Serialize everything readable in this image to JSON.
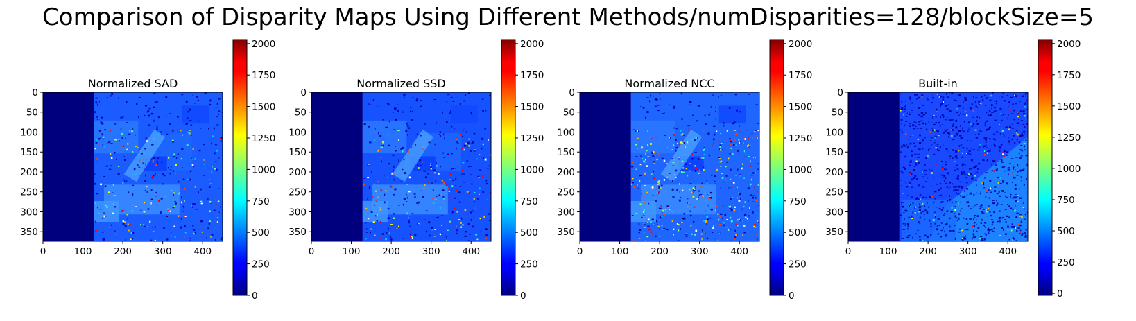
{
  "title": "Comparison of Disparity Maps Using Different Methods/numDisparities=128/blockSize=5",
  "colormap": "jet",
  "chart_data": [
    {
      "type": "heatmap",
      "title": "Normalized SAD",
      "xlim": [
        0,
        450
      ],
      "ylim": [
        374,
        0
      ],
      "x_ticks": [
        0,
        100,
        200,
        300,
        400
      ],
      "y_ticks": [
        0,
        50,
        100,
        150,
        200,
        250,
        300,
        350
      ],
      "invalid_region_x": [
        0,
        128
      ],
      "texture_variant": "sad",
      "colorbar": {
        "min": 0,
        "max": 2032,
        "ticks": [
          0,
          250,
          500,
          750,
          1000,
          1250,
          1500,
          1750,
          2000
        ]
      }
    },
    {
      "type": "heatmap",
      "title": "Normalized SSD",
      "xlim": [
        0,
        450
      ],
      "ylim": [
        374,
        0
      ],
      "x_ticks": [
        0,
        100,
        200,
        300,
        400
      ],
      "y_ticks": [
        0,
        50,
        100,
        150,
        200,
        250,
        300,
        350
      ],
      "invalid_region_x": [
        0,
        128
      ],
      "texture_variant": "ssd",
      "colorbar": {
        "min": 0,
        "max": 2032,
        "ticks": [
          0,
          250,
          500,
          750,
          1000,
          1250,
          1500,
          1750,
          2000
        ]
      }
    },
    {
      "type": "heatmap",
      "title": "Normalized NCC",
      "xlim": [
        0,
        450
      ],
      "ylim": [
        374,
        0
      ],
      "x_ticks": [
        0,
        100,
        200,
        300,
        400
      ],
      "y_ticks": [
        0,
        50,
        100,
        150,
        200,
        250,
        300,
        350
      ],
      "invalid_region_x": [
        0,
        128
      ],
      "texture_variant": "ncc",
      "colorbar": {
        "min": 0,
        "max": 2032,
        "ticks": [
          0,
          250,
          500,
          750,
          1000,
          1250,
          1500,
          1750,
          2000
        ]
      }
    },
    {
      "type": "heatmap",
      "title": "Built-in",
      "xlim": [
        0,
        450
      ],
      "ylim": [
        374,
        0
      ],
      "x_ticks": [
        0,
        100,
        200,
        300,
        400
      ],
      "y_ticks": [
        0,
        50,
        100,
        150,
        200,
        250,
        300,
        350
      ],
      "invalid_region_x": [
        0,
        128
      ],
      "texture_variant": "builtin",
      "colorbar": {
        "min": -16,
        "max": 2032,
        "ticks": [
          0,
          250,
          500,
          750,
          1000,
          1250,
          1500,
          1750,
          2000
        ]
      }
    }
  ]
}
